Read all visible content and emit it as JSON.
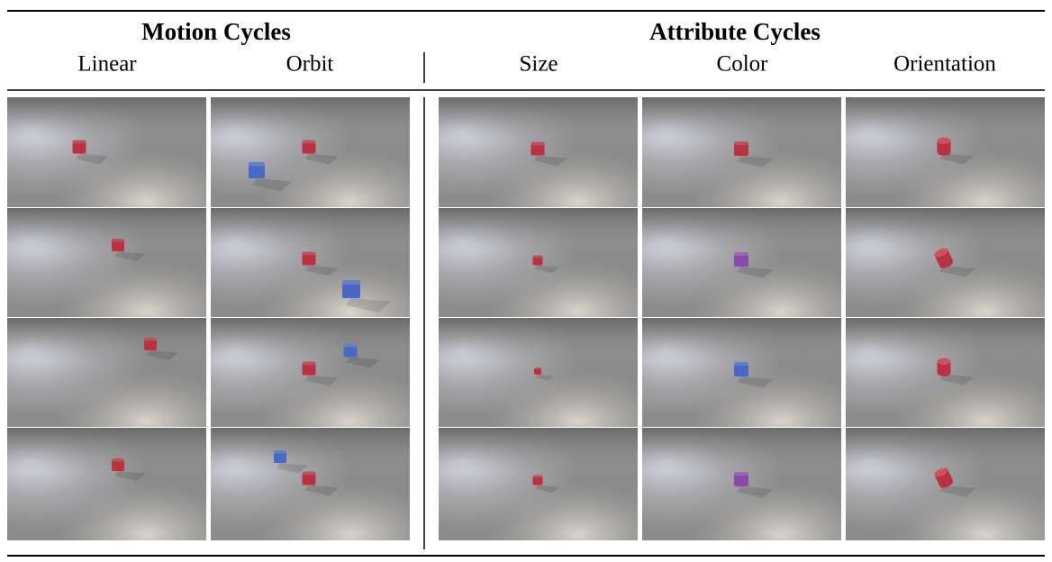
{
  "header": {
    "groups": [
      "Motion Cycles",
      "Attribute Cycles"
    ],
    "columns": [
      "Linear",
      "Orbit",
      "Size",
      "Color",
      "Orientation"
    ]
  }
}
